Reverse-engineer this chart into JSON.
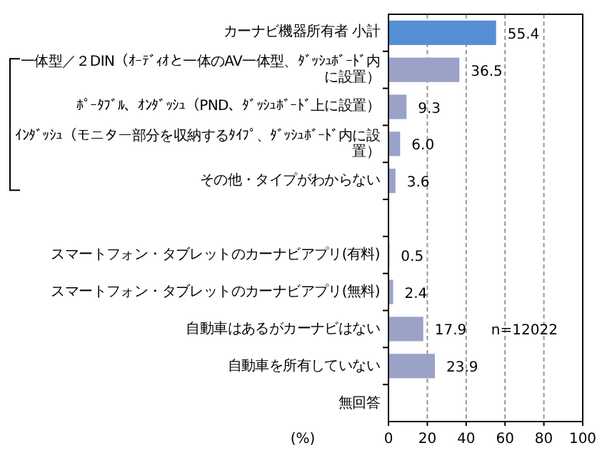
{
  "chart_data": {
    "type": "bar",
    "orientation": "horizontal",
    "categories": [
      "カーナビ機器所有者 小計",
      "一体型／２DIN（ｵｰﾃﾞｨｵと一体のAV一体型、ﾀﾞｯｼｭﾎﾞｰﾄﾞ内に設置）",
      "ﾎﾟｰﾀﾌﾞﾙ、ｵﾝﾀﾞｯｼｭ（PND、ﾀﾞｯｼｭﾎﾞｰﾄﾞ上に設置）",
      "ｲﾝﾀﾞｯｼｭ（モニター部分を収納するﾀｲﾌﾟ、ﾀﾞｯｼｭﾎﾞｰﾄﾞ内に設置）",
      "その他・タイプがわからない",
      null,
      "スマートフォン・タブレットのカーナビアプリ(有料)",
      "スマートフォン・タブレットのカーナビアプリ(無料)",
      "自動車はあるがカーナビはない",
      "自動車を所有していない",
      "無回答"
    ],
    "series": [
      {
        "color": "#558ed5",
        "values": [
          55.4,
          null,
          null,
          null,
          null,
          null,
          null,
          null,
          null,
          null,
          null
        ],
        "value_labels": [
          "55.4",
          null,
          null,
          null,
          null,
          null,
          null,
          null,
          null,
          null,
          null
        ]
      },
      {
        "color": "#9aa2c8",
        "values": [
          null,
          36.5,
          9.3,
          6.0,
          3.6,
          null,
          0.5,
          2.4,
          17.9,
          23.9,
          null
        ],
        "value_labels": [
          null,
          "36.5",
          "9.3",
          "6.0",
          "3.6",
          null,
          "0.5",
          "2.4",
          "17.9",
          "23.9",
          null
        ]
      }
    ],
    "xlabel": "(%)",
    "xlim": [
      0,
      100
    ],
    "xticks": [
      0,
      20,
      40,
      60,
      80,
      100
    ],
    "grid": "x",
    "annotations": [
      "n=12022"
    ]
  }
}
